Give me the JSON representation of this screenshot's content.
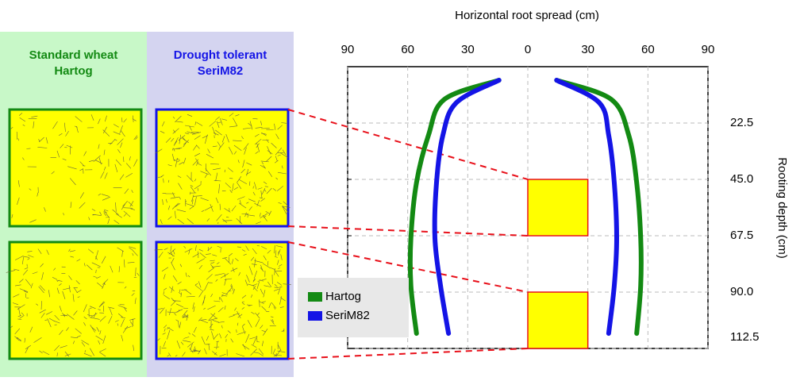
{
  "panels": [
    {
      "title": [
        "Standard wheat",
        "Hartog"
      ],
      "color": "#138a13",
      "background": "#c8f8c8"
    },
    {
      "title": [
        "Drought tolerant",
        "SeriM82"
      ],
      "color": "#1414e6",
      "background": "#d4d4f0"
    }
  ],
  "chart_data": {
    "type": "line",
    "xlabel": "Horizontal root spread (cm)",
    "ylabel": "Rooting depth (cm)",
    "xlim": [
      -90,
      90
    ],
    "xticks": [
      {
        "value": -90,
        "label": "90"
      },
      {
        "value": -60,
        "label": "60"
      },
      {
        "value": -30,
        "label": "30"
      },
      0,
      30,
      60,
      90
    ],
    "ylim": [
      0,
      112.5
    ],
    "yticks": [
      {
        "value": 22.5,
        "label": "22.5"
      },
      {
        "value": 45,
        "label": "45.0"
      },
      {
        "value": 67.5,
        "label": "67.5"
      },
      {
        "value": 90,
        "label": "90.0"
      },
      {
        "value": 112.5,
        "label": "112.5"
      }
    ],
    "y_inverted": true,
    "grid": true,
    "series": [
      {
        "name": "Hartog",
        "color": "#138a13",
        "x": [
          -14.4,
          -41.6,
          -49.6,
          -55.6,
          -58.4,
          -58.4,
          -55.6,
          null,
          14.4,
          41.6,
          50.4,
          54.4,
          56.4,
          56.4,
          54.4
        ],
        "values": [
          5.4,
          13.0,
          27.3,
          46.3,
          68.4,
          87.4,
          106.5,
          null,
          5.4,
          13.0,
          27.3,
          46.3,
          68.4,
          87.4,
          106.5
        ]
      },
      {
        "name": "SeriM82",
        "color": "#1414e6",
        "x": [
          -14.4,
          -35.6,
          -42.4,
          -45.6,
          -46.4,
          -43.6,
          -39.6,
          null,
          14.4,
          35.6,
          40.4,
          43.2,
          44.4,
          43.2,
          40.4
        ],
        "values": [
          5.4,
          14.3,
          27.3,
          46.3,
          68.4,
          87.4,
          106.5,
          null,
          5.4,
          14.3,
          27.3,
          46.3,
          68.4,
          87.4,
          106.5
        ]
      }
    ],
    "samples": [
      {
        "x": [
          0,
          30
        ],
        "depth": [
          45,
          67.5
        ]
      },
      {
        "x": [
          0,
          30
        ],
        "depth": [
          90,
          112.5
        ]
      }
    ]
  }
}
